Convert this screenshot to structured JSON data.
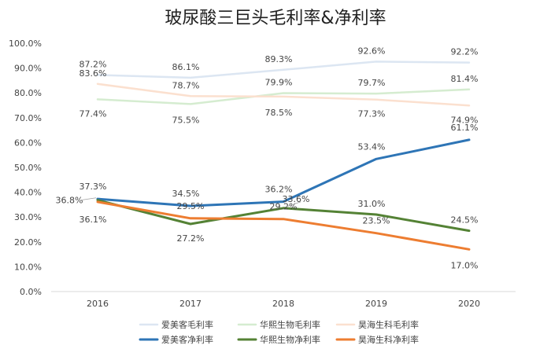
{
  "chart_data": {
    "type": "line",
    "title": "玻尿酸三巨头毛利率&净利率",
    "xlabel": "",
    "ylabel": "",
    "categories": [
      "2016",
      "2017",
      "2018",
      "2019",
      "2020"
    ],
    "ylim": [
      0,
      100
    ],
    "yticks": [
      "0.0%",
      "10.0%",
      "20.0%",
      "30.0%",
      "40.0%",
      "50.0%",
      "60.0%",
      "70.0%",
      "80.0%",
      "90.0%",
      "100.0%"
    ],
    "grid": false,
    "legend_position": "bottom",
    "series": [
      {
        "name": "爱美客毛利率",
        "values": [
          87.2,
          86.1,
          89.3,
          92.6,
          92.2
        ],
        "labels": [
          "87.2%",
          "86.1%",
          "89.3%",
          "92.6%",
          "92.2%"
        ],
        "color": "#dce6f2"
      },
      {
        "name": "华熙生物毛利率",
        "values": [
          77.4,
          75.5,
          79.9,
          79.7,
          81.4
        ],
        "labels": [
          "77.4%",
          "75.5%",
          "79.9%",
          "79.7%",
          "81.4%"
        ],
        "color": "#d5ecd0"
      },
      {
        "name": "昊海生科毛利率",
        "values": [
          83.6,
          78.7,
          78.5,
          77.3,
          74.9
        ],
        "labels": [
          "83.6%",
          "78.7%",
          "78.5%",
          "77.3%",
          "74.9%"
        ],
        "color": "#fbe0cf"
      },
      {
        "name": "爱美客净利率",
        "values": [
          37.3,
          34.5,
          36.2,
          53.4,
          61.1
        ],
        "labels": [
          "37.3%",
          "34.5%",
          "36.2%",
          "53.4%",
          "61.1%"
        ],
        "color": "#2e75b6"
      },
      {
        "name": "华熙生物净利率",
        "values": [
          36.8,
          27.2,
          33.6,
          31.0,
          24.5
        ],
        "labels": [
          "36.8%",
          "27.2%",
          "33.6%",
          "31.0%",
          "24.5%"
        ],
        "color": "#548235"
      },
      {
        "name": "昊海生科净利率",
        "values": [
          36.1,
          29.5,
          29.2,
          23.5,
          17.0
        ],
        "labels": [
          "36.1%",
          "29.5%",
          "29.2%",
          "23.5%",
          "17.0%"
        ],
        "color": "#ed7d31"
      }
    ]
  }
}
